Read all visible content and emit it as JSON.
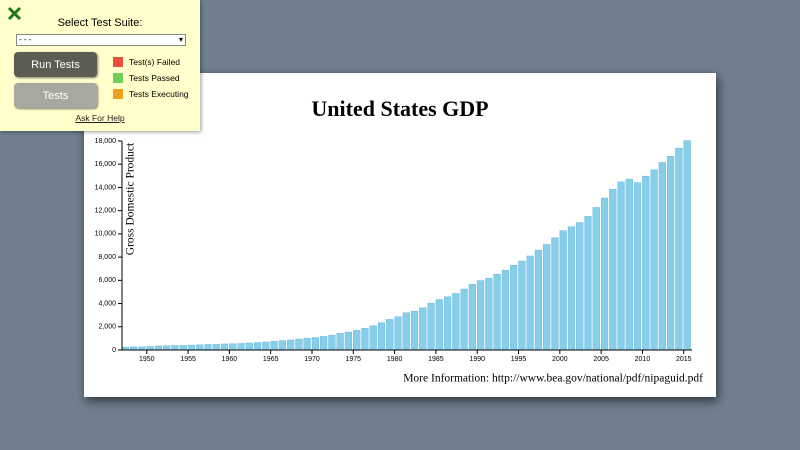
{
  "panel": {
    "title": "Select Test Suite:",
    "select_value": "- - -",
    "buttons": [
      "Run Tests",
      "Tests"
    ],
    "legend": [
      {
        "label": "Test(s) Failed",
        "color": "#e8503a"
      },
      {
        "label": "Tests Passed",
        "color": "#6cd05a"
      },
      {
        "label": "Tests Executing",
        "color": "#f0a020"
      }
    ],
    "help_link": "Ask For Help"
  },
  "chart_data": {
    "type": "bar",
    "title": "United States GDP",
    "y_label": "Gross Domestic Product",
    "note": "More Information: http://www.bea.gov/national/pdf/nipaguid.pdf",
    "color": "#87ceeb",
    "x": [
      1947,
      1948,
      1949,
      1950,
      1951,
      1952,
      1953,
      1954,
      1955,
      1956,
      1957,
      1958,
      1959,
      1960,
      1961,
      1962,
      1963,
      1964,
      1965,
      1966,
      1967,
      1968,
      1969,
      1970,
      1971,
      1972,
      1973,
      1974,
      1975,
      1976,
      1977,
      1978,
      1979,
      1980,
      1981,
      1982,
      1983,
      1984,
      1985,
      1986,
      1987,
      1988,
      1989,
      1990,
      1991,
      1992,
      1993,
      1994,
      1995,
      1996,
      1997,
      1998,
      1999,
      2000,
      2001,
      2002,
      2003,
      2004,
      2005,
      2006,
      2007,
      2008,
      2009,
      2010,
      2011,
      2012,
      2013,
      2014,
      2015
    ],
    "values": [
      244,
      270,
      272,
      300,
      347,
      367,
      389,
      391,
      426,
      449,
      474,
      482,
      522,
      543,
      563,
      605,
      638,
      686,
      744,
      815,
      862,
      943,
      1019,
      1075,
      1168,
      1282,
      1429,
      1549,
      1689,
      1878,
      2086,
      2357,
      2632,
      2863,
      3211,
      3345,
      3638,
      4041,
      4347,
      4590,
      4870,
      5253,
      5658,
      5980,
      6174,
      6539,
      6879,
      7309,
      7664,
      8100,
      8609,
      9089,
      9661,
      10285,
      10622,
      10978,
      11511,
      12275,
      13094,
      13856,
      14478,
      14719,
      14419,
      14964,
      15518,
      16155,
      16692,
      17393,
      18037
    ],
    "xlim": [
      1947,
      2016
    ],
    "xticks": [
      1950,
      1955,
      1960,
      1965,
      1970,
      1975,
      1980,
      1985,
      1990,
      1995,
      2000,
      2005,
      2010,
      2015
    ],
    "ylim": [
      0,
      18000
    ],
    "yticks": [
      0,
      {
        "value": 2000,
        "label": "2,000"
      },
      {
        "value": 4000,
        "label": "4,000"
      },
      {
        "value": 6000,
        "label": "6,000"
      },
      {
        "value": 8000,
        "label": "8,000"
      },
      {
        "value": 10000,
        "label": "10,000"
      },
      {
        "value": 12000,
        "label": "12,000"
      },
      {
        "value": 14000,
        "label": "14,000"
      },
      {
        "value": 16000,
        "label": "16,000"
      },
      {
        "value": 18000,
        "label": "18,000"
      }
    ]
  }
}
